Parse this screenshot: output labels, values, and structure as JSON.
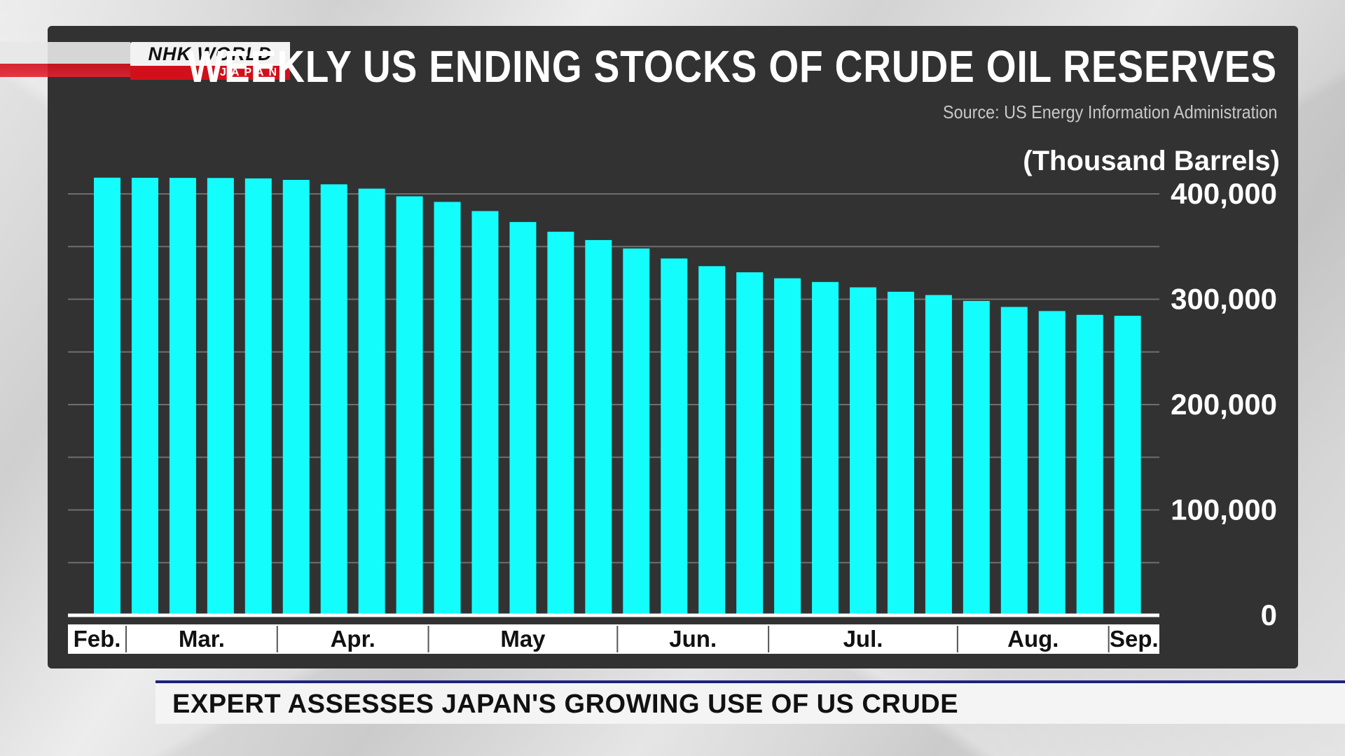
{
  "logo": {
    "top": "NHK WORLD",
    "bottom": "JAPAN"
  },
  "header": {
    "title": "WEEKLY US ENDING STOCKS OF CRUDE OIL RESERVES",
    "source": "Source: US Energy Information Administration"
  },
  "caption": {
    "text": "EXPERT ASSESSES JAPAN'S GROWING USE OF US CRUDE"
  },
  "colors": {
    "bar": "#14fdfd",
    "panel": "#323232",
    "grid": "#6e6e6e",
    "axis": "#ffffff",
    "brand_red": "#d2101c"
  },
  "chart_data": {
    "type": "bar",
    "unit_label": "(Thousand Barrels)",
    "ylim": [
      0,
      420000
    ],
    "yticks": [
      {
        "value": 0,
        "label": "0"
      },
      {
        "value": 100000,
        "label": "100,000"
      },
      {
        "value": 200000,
        "label": "200,000"
      },
      {
        "value": 300000,
        "label": "300,000"
      },
      {
        "value": 400000,
        "label": "400,000"
      }
    ],
    "minor_gridlines": [
      50000,
      150000,
      250000,
      350000
    ],
    "grid": true,
    "values": [
      415400,
      415300,
      415200,
      415100,
      414700,
      413300,
      409100,
      405000,
      397700,
      392400,
      383700,
      373300,
      364100,
      356200,
      348200,
      338700,
      331400,
      325600,
      319900,
      316400,
      311300,
      307100,
      304000,
      298400,
      292700,
      288800,
      285200,
      284300
    ],
    "months": [
      {
        "label": "Feb.",
        "bars": 1
      },
      {
        "label": "Mar.",
        "bars": 4
      },
      {
        "label": "Apr.",
        "bars": 4
      },
      {
        "label": "May",
        "bars": 5
      },
      {
        "label": "Jun.",
        "bars": 4
      },
      {
        "label": "Jul.",
        "bars": 5
      },
      {
        "label": "Aug.",
        "bars": 4
      },
      {
        "label": "Sep.",
        "bars": 1
      }
    ]
  }
}
